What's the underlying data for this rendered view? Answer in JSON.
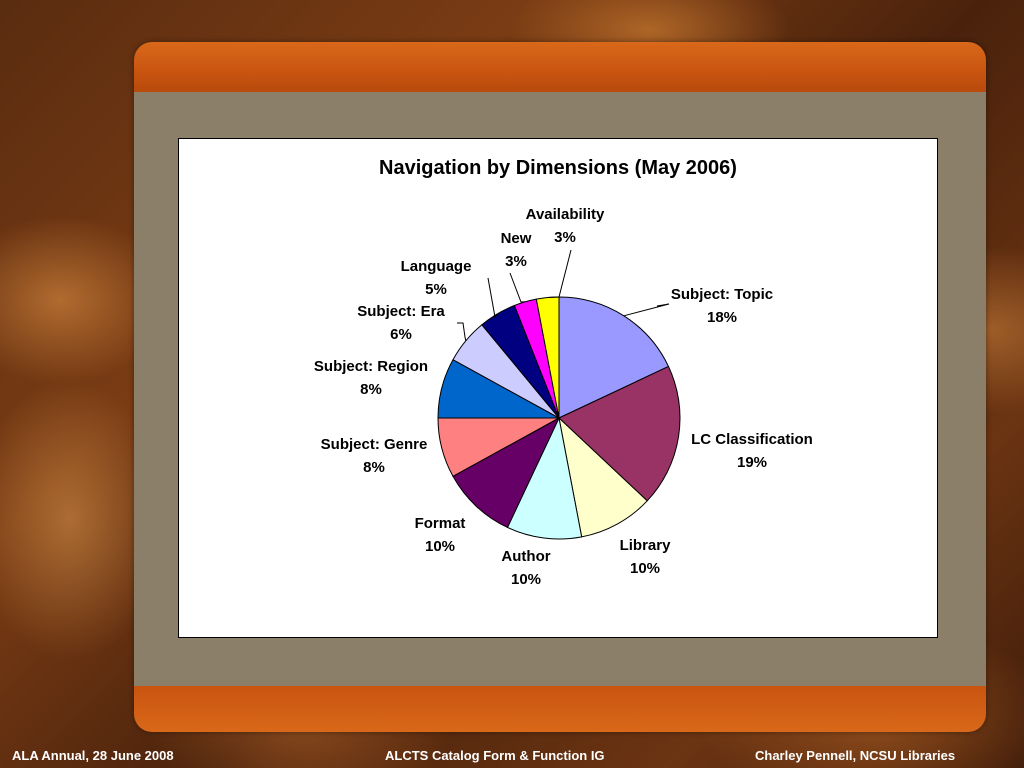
{
  "footer": {
    "left": "ALA Annual, 28 June 2008",
    "center": "ALCTS Catalog Form & Function IG",
    "right": "Charley Pennell, NCSU Libraries"
  },
  "chart_data": {
    "type": "pie",
    "title": "Navigation by Dimensions (May 2006)",
    "slices": [
      {
        "name": "Subject: Topic",
        "value": 18,
        "label": "18%",
        "color": "#9999ff"
      },
      {
        "name": "LC Classification",
        "value": 19,
        "label": "19%",
        "color": "#993366"
      },
      {
        "name": "Library",
        "value": 10,
        "label": "10%",
        "color": "#ffffcc"
      },
      {
        "name": "Author",
        "value": 10,
        "label": "10%",
        "color": "#ccffff"
      },
      {
        "name": "Format",
        "value": 10,
        "label": "10%",
        "color": "#660066"
      },
      {
        "name": "Subject: Genre",
        "value": 8,
        "label": "8%",
        "color": "#ff8080"
      },
      {
        "name": "Subject: Region",
        "value": 8,
        "label": "8%",
        "color": "#0066cc"
      },
      {
        "name": "Subject: Era",
        "value": 6,
        "label": "6%",
        "color": "#ccccff"
      },
      {
        "name": "Language",
        "value": 5,
        "label": "5%",
        "color": "#000080"
      },
      {
        "name": "New",
        "value": 3,
        "label": "3%",
        "color": "#ff00ff"
      },
      {
        "name": "Availability",
        "value": 3,
        "label": "3%",
        "color": "#ffff00"
      }
    ]
  }
}
